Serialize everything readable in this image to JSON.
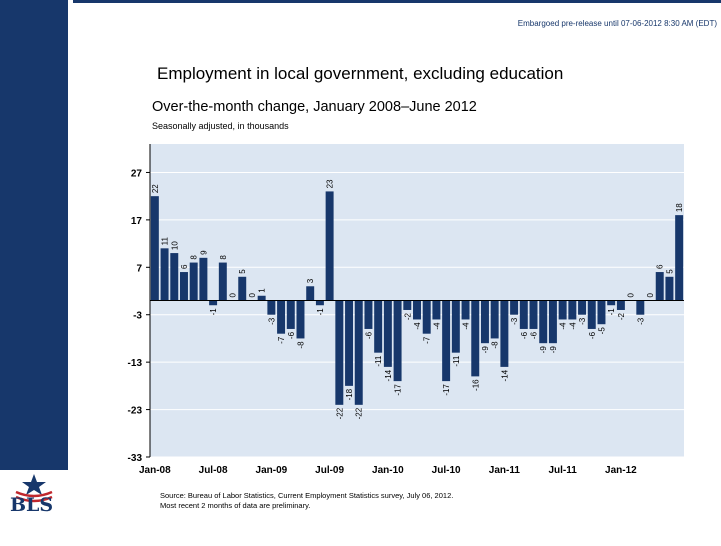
{
  "embargo_text": "Embargoed pre-release until 07-06-2012 8:30 AM (EDT)",
  "title": "Employment in local government, excluding education",
  "subtitle": "Over-the-month change, January 2008–June 2012",
  "unit_note": "Seasonally adjusted, in thousands",
  "source_lines": [
    "Source: Bureau of Labor Statistics, Current Employment Statistics survey, July 06, 2012.",
    "Most recent 2 months of data are preliminary."
  ],
  "logo_text": "BLS",
  "colors": {
    "bar": "#17376b",
    "plot_bg": "#dce6f2",
    "grid": "#ffffff",
    "brand": "#17376b"
  },
  "chart_data": {
    "type": "bar",
    "title": "Employment in local government, excluding education",
    "subtitle": "Over-the-month change, January 2008–June 2012",
    "ylabel": "Seasonally adjusted, in thousands",
    "ylim": [
      -33,
      33
    ],
    "yticks": [
      27,
      17,
      7,
      -3,
      -13,
      -23,
      -33
    ],
    "xtick_labels": [
      "Jan-08",
      "Jul-08",
      "Jan-09",
      "Jul-09",
      "Jan-10",
      "Jul-10",
      "Jan-11",
      "Jul-11",
      "Jan-12"
    ],
    "xtick_every": 6,
    "grid": true,
    "values": [
      22,
      11,
      10,
      6,
      8,
      9,
      -1,
      8,
      0,
      5,
      0,
      1,
      -3,
      -7,
      -6,
      -8,
      3,
      -1,
      23,
      -22,
      -18,
      -22,
      -6,
      -11,
      -14,
      -17,
      -2,
      -4,
      -7,
      -4,
      -17,
      -11,
      -4,
      -16,
      -9,
      -8,
      -14,
      -3,
      -6,
      -6,
      -9,
      -9,
      -4,
      -4,
      -3,
      -6,
      -5,
      -1,
      -2,
      0,
      -3,
      0,
      6,
      5,
      18
    ]
  }
}
